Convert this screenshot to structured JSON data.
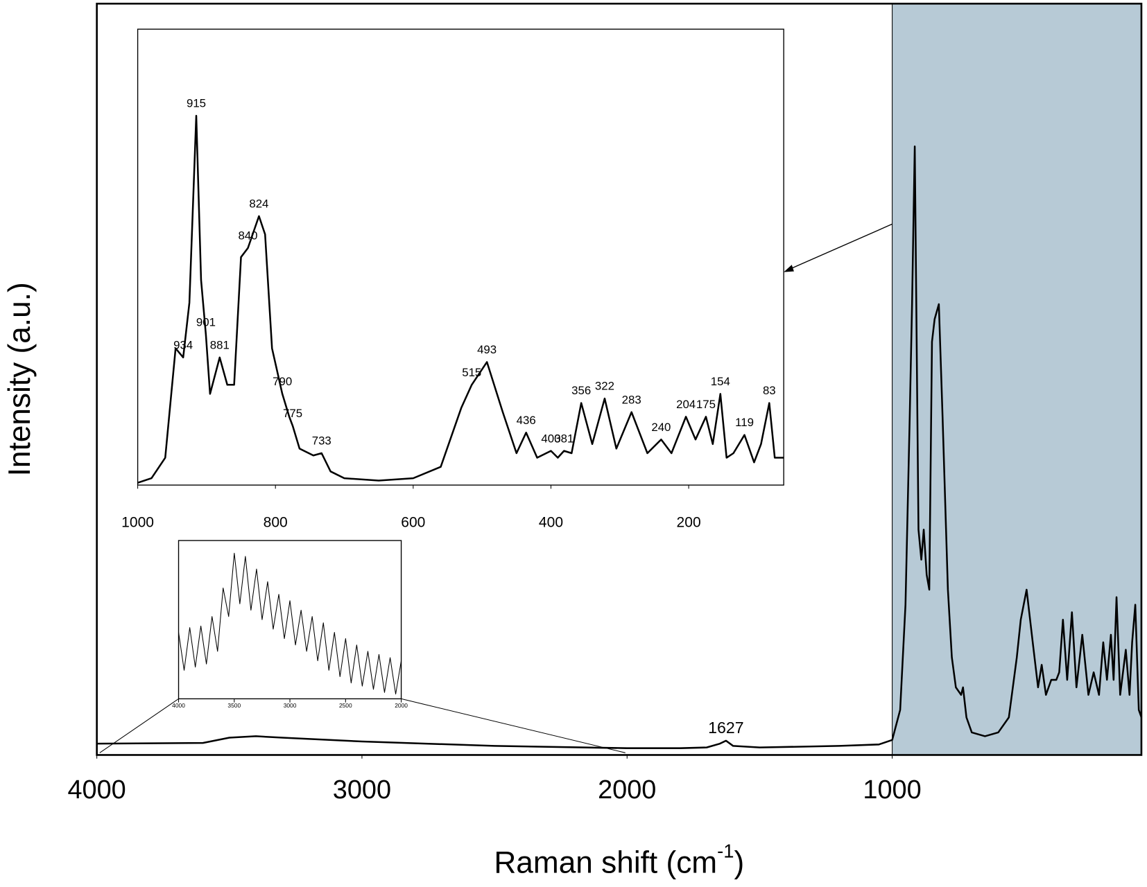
{
  "chart_data": [
    {
      "type": "line",
      "xlabel": [
        "Raman shift (cm",
        "-1",
        ")"
      ],
      "ylabel": "Intensity (a.u.)",
      "xlim": [
        4000,
        60
      ],
      "ylim": [
        0,
        100
      ],
      "xticks": [
        4000,
        3000,
        2000,
        1000
      ],
      "shaded_from": 1000,
      "shade_color": "#b7cad6",
      "color": "#000000",
      "x": [
        4000,
        3600,
        3500,
        3400,
        3300,
        3000,
        2500,
        2000,
        1800,
        1700,
        1650,
        1627,
        1600,
        1500,
        1200,
        1050,
        1000,
        970,
        950,
        934,
        925,
        915,
        905,
        901,
        890,
        881,
        870,
        860,
        850,
        840,
        824,
        810,
        790,
        780,
        775,
        760,
        740,
        733,
        720,
        700,
        650,
        600,
        560,
        530,
        515,
        493,
        470,
        450,
        436,
        420,
        400,
        381,
        370,
        356,
        340,
        322,
        305,
        283,
        260,
        240,
        220,
        204,
        190,
        175,
        165,
        154,
        140,
        119,
        105,
        95,
        83,
        70,
        60
      ],
      "values": [
        1.5,
        1.6,
        2.3,
        2.5,
        2.3,
        1.8,
        1.2,
        0.9,
        0.9,
        1.0,
        1.5,
        1.9,
        1.2,
        1.0,
        1.2,
        1.4,
        2.0,
        6,
        20,
        45,
        60,
        81,
        45,
        30,
        26,
        30,
        24,
        22,
        55,
        58,
        60,
        45,
        22,
        16,
        13,
        9,
        8,
        9,
        5,
        3,
        2.5,
        3,
        5,
        13,
        18,
        22,
        15,
        9,
        12,
        8,
        10,
        10,
        11,
        18,
        10,
        19,
        9,
        16,
        8,
        11,
        8,
        15,
        10,
        16,
        10,
        21,
        8,
        14,
        8,
        15,
        20,
        6,
        5
      ],
      "annotations": [
        {
          "label": "1627",
          "x": 1627
        }
      ]
    },
    {
      "type": "line",
      "xlim": [
        1000,
        62
      ],
      "ylim": [
        0,
        100
      ],
      "xticks": [
        1000,
        800,
        600,
        400,
        200
      ],
      "color": "#000000",
      "x": [
        1000,
        980,
        960,
        945,
        934,
        925,
        915,
        908,
        901,
        895,
        881,
        870,
        860,
        850,
        840,
        824,
        815,
        805,
        790,
        780,
        775,
        765,
        745,
        733,
        720,
        700,
        650,
        600,
        560,
        530,
        515,
        493,
        470,
        450,
        436,
        420,
        400,
        390,
        381,
        370,
        356,
        340,
        322,
        305,
        283,
        260,
        240,
        225,
        204,
        190,
        175,
        165,
        154,
        145,
        135,
        119,
        105,
        95,
        83,
        75,
        62
      ],
      "values": [
        0.5,
        1.5,
        6,
        30,
        28,
        40,
        81,
        45,
        33,
        20,
        28,
        22,
        22,
        50,
        52,
        59,
        55,
        30,
        20,
        15,
        13,
        8,
        6.5,
        7,
        3,
        1.5,
        1,
        1.5,
        4,
        17,
        22,
        27,
        16,
        7,
        11.5,
        6,
        7.5,
        6,
        7.5,
        7,
        18,
        9,
        19,
        8,
        16,
        7,
        10,
        7,
        15,
        10,
        15,
        9,
        20,
        6,
        7,
        11,
        5,
        9,
        18,
        6,
        6
      ],
      "annotations": [
        {
          "label": "915",
          "x": 915
        },
        {
          "label": "934",
          "x": 934
        },
        {
          "label": "901",
          "x": 901,
          "color": "#8c8c8c"
        },
        {
          "label": "881",
          "x": 881
        },
        {
          "label": "840",
          "x": 840
        },
        {
          "label": "824",
          "x": 824
        },
        {
          "label": "790",
          "x": 790
        },
        {
          "label": "775",
          "x": 775
        },
        {
          "label": "733",
          "x": 733
        },
        {
          "label": "515",
          "x": 515
        },
        {
          "label": "493",
          "x": 493
        },
        {
          "label": "436",
          "x": 436
        },
        {
          "label": "400",
          "x": 400,
          "color": "#8c8c8c"
        },
        {
          "label": "381",
          "x": 381,
          "color": "#8c8c8c"
        },
        {
          "label": "356",
          "x": 356
        },
        {
          "label": "322",
          "x": 322
        },
        {
          "label": "283",
          "x": 283
        },
        {
          "label": "240",
          "x": 240
        },
        {
          "label": "204",
          "x": 204
        },
        {
          "label": "175",
          "x": 175
        },
        {
          "label": "154",
          "x": 154
        },
        {
          "label": "119",
          "x": 119
        },
        {
          "label": "83",
          "x": 83
        }
      ]
    },
    {
      "type": "line",
      "xlim": [
        4000,
        2000
      ],
      "ylim": [
        0,
        100
      ],
      "xticks": [
        4000,
        3500,
        3000,
        2500,
        2000
      ],
      "color": "#000000",
      "x": [
        4000,
        3950,
        3900,
        3850,
        3800,
        3750,
        3700,
        3650,
        3600,
        3550,
        3500,
        3450,
        3400,
        3350,
        3300,
        3250,
        3200,
        3150,
        3100,
        3050,
        3000,
        2950,
        2900,
        2850,
        2800,
        2750,
        2700,
        2650,
        2600,
        2550,
        2500,
        2450,
        2400,
        2350,
        2300,
        2250,
        2200,
        2150,
        2100,
        2050,
        2000
      ],
      "values": [
        42,
        18,
        45,
        20,
        46,
        22,
        52,
        30,
        70,
        52,
        92,
        60,
        90,
        56,
        82,
        50,
        74,
        44,
        66,
        38,
        62,
        34,
        56,
        30,
        52,
        24,
        48,
        18,
        42,
        14,
        38,
        10,
        34,
        8,
        30,
        6,
        28,
        4,
        26,
        3,
        24
      ]
    }
  ]
}
